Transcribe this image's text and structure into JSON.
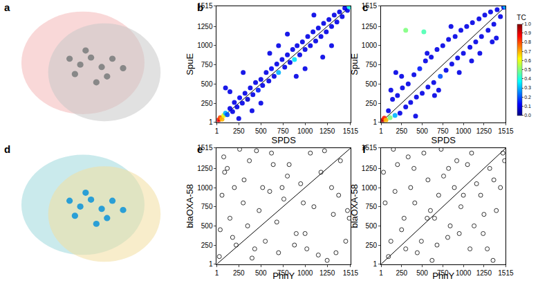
{
  "chart_data": [
    {
      "type": "scatter",
      "panel": "b",
      "x_label": "SPDS",
      "y_label": "SpuE",
      "xlim": [
        1,
        1515
      ],
      "ylim": [
        1,
        1515
      ],
      "xticks": [
        1,
        250,
        500,
        750,
        1000,
        1250,
        1515
      ],
      "yticks": [
        1,
        250,
        500,
        750,
        1000,
        1250,
        1515
      ],
      "marker": "filled circle",
      "x": [
        20,
        40,
        60,
        80,
        100,
        120,
        150,
        180,
        200,
        230,
        260,
        290,
        320,
        350,
        380,
        410,
        440,
        470,
        500,
        520,
        560,
        590,
        620,
        650,
        680,
        700,
        740,
        770,
        800,
        830,
        860,
        880,
        910,
        940,
        970,
        1000,
        1030,
        1060,
        1090,
        1120,
        1150,
        1180,
        1210,
        1240,
        1270,
        1300,
        1330,
        1360,
        1390,
        1420,
        1450,
        1480,
        1500,
        100,
        300,
        500,
        700,
        900,
        1100,
        1300,
        250,
        600,
        1000,
        400,
        800,
        1200,
        150
      ],
      "values": [
        30,
        60,
        40,
        90,
        120,
        100,
        180,
        140,
        260,
        200,
        320,
        250,
        380,
        300,
        450,
        360,
        520,
        420,
        560,
        480,
        650,
        540,
        700,
        600,
        760,
        650,
        820,
        720,
        880,
        780,
        950,
        820,
        1000,
        880,
        1050,
        950,
        1120,
        1000,
        1180,
        1060,
        1230,
        1120,
        1290,
        1180,
        1340,
        1250,
        1400,
        1310,
        1440,
        1380,
        1490,
        1460,
        1505,
        450,
        650,
        250,
        1000,
        600,
        1400,
        1000,
        50,
        900,
        700,
        150,
        1150,
        850,
        400
      ],
      "tc": [
        0.9,
        0.8,
        0.7,
        0.6,
        0.3,
        0.2,
        0.1,
        0.1,
        0.1,
        0.1,
        0.12,
        0.1,
        0.1,
        0.08,
        0.1,
        0.1,
        0.1,
        0.15,
        0.1,
        0.1,
        0.1,
        0.1,
        0.12,
        0.1,
        0.1,
        0.3,
        0.1,
        0.1,
        0.1,
        0.1,
        0.1,
        0.35,
        0.1,
        0.1,
        0.1,
        0.1,
        0.1,
        0.1,
        0.1,
        0.1,
        0.1,
        0.1,
        0.1,
        0.1,
        0.1,
        0.1,
        0.1,
        0.1,
        0.1,
        0.1,
        0.1,
        0.1,
        0.4,
        0.1,
        0.1,
        0.1,
        0.1,
        0.1,
        0.1,
        0.1,
        0.1,
        0.1,
        0.1,
        0.1,
        0.1,
        0.1,
        0.1
      ]
    },
    {
      "type": "scatter",
      "panel": "c",
      "x_label": "SPDS",
      "y_label": "SpuE",
      "xlim": [
        1,
        1515
      ],
      "ylim": [
        1,
        1515
      ],
      "xticks": [
        1,
        250,
        500,
        750,
        1000,
        1250,
        1515
      ],
      "yticks": [
        1,
        250,
        500,
        750,
        1000,
        1250,
        1515
      ],
      "marker": "filled circle",
      "colorbar": {
        "title": "TC",
        "range": [
          0,
          1
        ],
        "ticks": [
          {
            "value": 0,
            "label": "0.0"
          },
          {
            "value": 0.1,
            "label": "0.1"
          },
          {
            "value": 0.2,
            "label": "0.2"
          },
          {
            "value": 0.3,
            "label": "0.3"
          },
          {
            "value": 0.4,
            "label": "0.4"
          },
          {
            "value": 0.5,
            "label": "0.5"
          },
          {
            "value": 0.6,
            "label": "0.6"
          },
          {
            "value": 0.7,
            "label": "0.7"
          },
          {
            "value": 0.8,
            "label": "0.8"
          },
          {
            "value": 0.9,
            "label": "0.9"
          },
          {
            "value": 1,
            "label": "1.0"
          }
        ]
      },
      "x": [
        20,
        40,
        60,
        90,
        110,
        140,
        170,
        200,
        230,
        260,
        300,
        330,
        360,
        400,
        430,
        470,
        500,
        540,
        570,
        610,
        640,
        680,
        720,
        750,
        790,
        820,
        860,
        900,
        930,
        970,
        1000,
        1040,
        1080,
        1110,
        1150,
        1190,
        1220,
        1260,
        1300,
        1330,
        1370,
        1410,
        1450,
        1490,
        1505,
        300,
        520,
        120,
        420,
        700,
        950,
        1200,
        1400,
        250,
        650,
        850,
        1100,
        1350,
        180,
        560
      ],
      "values": [
        25,
        55,
        30,
        150,
        60,
        300,
        90,
        350,
        120,
        450,
        200,
        500,
        260,
        620,
        330,
        700,
        380,
        800,
        460,
        850,
        520,
        950,
        600,
        1000,
        680,
        1080,
        760,
        1120,
        840,
        1200,
        900,
        1250,
        980,
        1300,
        1050,
        1350,
        1120,
        1400,
        1200,
        1440,
        1280,
        1470,
        1380,
        1500,
        1510,
        1200,
        1180,
        420,
        80,
        420,
        650,
        900,
        1100,
        600,
        350,
        1250,
        800,
        1050,
        650,
        900
      ],
      "tc": [
        0.95,
        0.85,
        0.7,
        0.1,
        0.5,
        0.1,
        0.3,
        0.1,
        0.1,
        0.1,
        0.1,
        0.1,
        0.1,
        0.1,
        0.1,
        0.15,
        0.1,
        0.1,
        0.1,
        0.1,
        0.1,
        0.1,
        0.2,
        0.1,
        0.1,
        0.1,
        0.1,
        0.1,
        0.1,
        0.1,
        0.1,
        0.1,
        0.1,
        0.1,
        0.1,
        0.1,
        0.1,
        0.1,
        0.1,
        0.1,
        0.1,
        0.1,
        0.1,
        0.1,
        0.3,
        0.5,
        0.45,
        0.1,
        0.1,
        0.1,
        0.1,
        0.1,
        0.1,
        0.1,
        0.1,
        0.1,
        0.1,
        0.1,
        0.1,
        0.1
      ]
    },
    {
      "type": "scatter",
      "panel": "e",
      "x_label": "PhnY",
      "y_label": "blaOXA-58",
      "xlim": [
        1,
        1515
      ],
      "ylim": [
        1,
        1515
      ],
      "xticks": [
        1,
        250,
        500,
        750,
        1000,
        1250,
        1515
      ],
      "yticks": [
        1,
        250,
        500,
        750,
        1000,
        1250,
        1515
      ],
      "marker": "open circle",
      "color": "#000000",
      "x": [
        30,
        80,
        150,
        220,
        60,
        310,
        400,
        120,
        480,
        550,
        620,
        200,
        700,
        760,
        350,
        820,
        900,
        950,
        450,
        1020,
        1100,
        1180,
        600,
        1250,
        1320,
        1400,
        1460,
        800,
        40,
        260,
        520,
        680,
        980,
        1150,
        1300,
        1480,
        90,
        370,
        740,
        1060,
        1380,
        180,
        430,
        880,
        1220,
        1500,
        300,
        640,
        1000,
        1350
      ],
      "values": [
        100,
        1400,
        600,
        250,
        900,
        1100,
        80,
        1250,
        700,
        300,
        1450,
        1000,
        150,
        850,
        500,
        1300,
        400,
        1050,
        1480,
        200,
        750,
        1200,
        950,
        50,
        650,
        1350,
        300,
        1150,
        450,
        1500,
        1000,
        550,
        800,
        120,
        1000,
        700,
        1200,
        1350,
        1000,
        1450,
        900,
        350,
        200,
        250,
        1480,
        600,
        800,
        1300,
        400,
        150
      ]
    },
    {
      "type": "scatter",
      "panel": "f",
      "x_label": "PhnY",
      "y_label": "blaOXA-58",
      "xlim": [
        1,
        1515
      ],
      "ylim": [
        1,
        1515
      ],
      "xticks": [
        1,
        250,
        500,
        750,
        1000,
        1250,
        1515
      ],
      "yticks": [
        1,
        250,
        500,
        750,
        1000,
        1250,
        1515
      ],
      "marker": "open circle",
      "color": "#000000",
      "x": [
        50,
        120,
        200,
        280,
        360,
        440,
        520,
        600,
        680,
        760,
        840,
        920,
        1000,
        1080,
        1160,
        1240,
        1320,
        1400,
        1480,
        90,
        170,
        250,
        330,
        410,
        490,
        570,
        650,
        730,
        810,
        890,
        970,
        1050,
        1130,
        1210,
        1290,
        1370,
        1450,
        30,
        300,
        560,
        820,
        1100,
        1360,
        150,
        700,
        1250,
        400,
        950,
        1500,
        620
      ],
      "values": [
        800,
        300,
        1300,
        600,
        1000,
        150,
        1450,
        700,
        250,
        1150,
        500,
        1350,
        900,
        200,
        1050,
        400,
        1250,
        700,
        1450,
        100,
        950,
        450,
        1400,
        800,
        300,
        1100,
        600,
        1500,
        350,
        1000,
        750,
        1300,
        500,
        900,
        200,
        1100,
        1000,
        1200,
        200,
        600,
        1250,
        1450,
        50,
        1500,
        900,
        650,
        1250,
        400,
        1350,
        50
      ]
    }
  ],
  "structures": [
    {
      "panel": "a"
    },
    {
      "panel": "d"
    }
  ]
}
